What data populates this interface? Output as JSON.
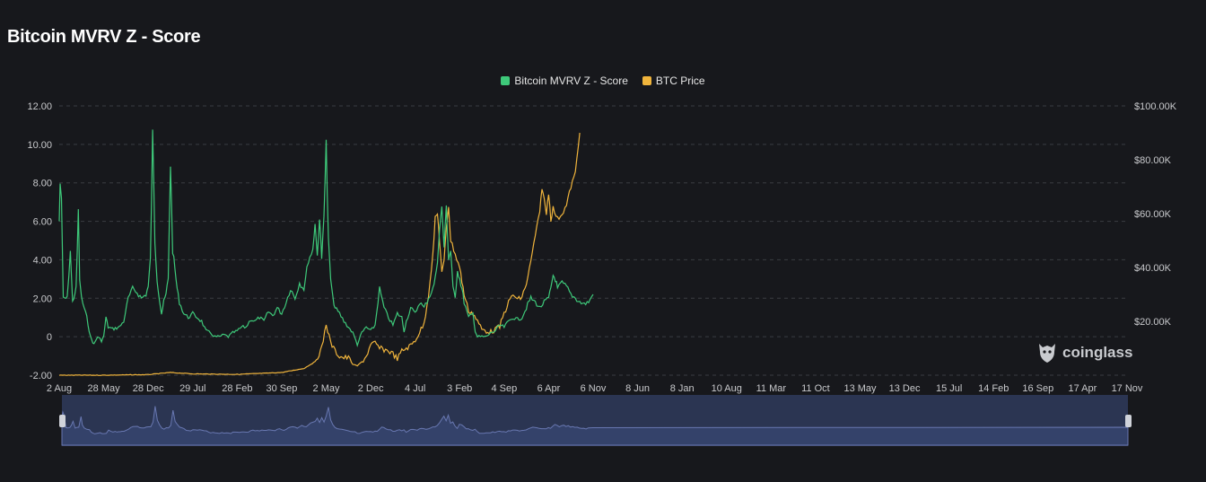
{
  "page": {
    "title": "Bitcoin MVRV Z - Score",
    "watermark": "coinglass"
  },
  "colors": {
    "background": "#17181c",
    "zscore": "#3ec97a",
    "price": "#f0b43c",
    "grid": "#3a3c42",
    "navigator_fill": "#34426a",
    "navigator_line": "#6877b0"
  },
  "chart_data": {
    "type": "line",
    "title": "Bitcoin MVRV Z - Score",
    "legend": {
      "placement": "top-center"
    },
    "grid": {
      "horizontal": true,
      "style": "dashed",
      "vertical": false
    },
    "x_tick_labels": [
      "2 Aug",
      "28 May",
      "28 Dec",
      "29 Jul",
      "28 Feb",
      "30 Sep",
      "2 May",
      "2 Dec",
      "4 Jul",
      "3 Feb",
      "4 Sep",
      "6 Apr",
      "6 Nov",
      "8 Jun",
      "8 Jan",
      "10 Aug",
      "11 Mar",
      "11 Oct",
      "13 May",
      "13 Dec",
      "15 Jul",
      "14 Feb",
      "16 Sep",
      "17 Apr",
      "17 Nov"
    ],
    "y_left": {
      "ylim": [
        -2,
        12
      ],
      "tick_labels": [
        "-2.00",
        "0",
        "2.00",
        "4.00",
        "6.00",
        "8.00",
        "10.00",
        "12.00"
      ],
      "tick_values": [
        -2,
        0,
        2,
        4,
        6,
        8,
        10,
        12
      ]
    },
    "y_right": {
      "ylim": [
        0,
        100000
      ],
      "tick_labels": [
        "$20.00K",
        "$40.00K",
        "$60.00K",
        "$80.00K",
        "$100.00K"
      ],
      "tick_values": [
        20000,
        40000,
        60000,
        80000,
        100000
      ]
    },
    "series": [
      {
        "name": "Bitcoin MVRV Z - Score",
        "axis": "left",
        "points": [
          [
            0,
            6.0
          ],
          [
            0.02,
            8.0
          ],
          [
            0.05,
            7.0
          ],
          [
            0.09,
            2.0
          ],
          [
            0.18,
            2.0
          ],
          [
            0.25,
            4.5
          ],
          [
            0.3,
            1.8
          ],
          [
            0.38,
            2.5
          ],
          [
            0.43,
            6.5
          ],
          [
            0.46,
            3.0
          ],
          [
            0.5,
            2.0
          ],
          [
            0.56,
            1.5
          ],
          [
            0.62,
            1.0
          ],
          [
            0.7,
            0.0
          ],
          [
            0.78,
            -0.4
          ],
          [
            0.86,
            0.0
          ],
          [
            0.95,
            -0.2
          ],
          [
            1.0,
            0.0
          ],
          [
            1.05,
            1.0
          ],
          [
            1.1,
            0.5
          ],
          [
            1.2,
            0.4
          ],
          [
            1.35,
            0.5
          ],
          [
            1.45,
            0.8
          ],
          [
            1.55,
            2.0
          ],
          [
            1.65,
            2.5
          ],
          [
            1.75,
            2.3
          ],
          [
            1.85,
            2.0
          ],
          [
            1.95,
            2.2
          ],
          [
            2.0,
            2.6
          ],
          [
            2.05,
            4.0
          ],
          [
            2.1,
            10.5
          ],
          [
            2.15,
            5.0
          ],
          [
            2.2,
            3.0
          ],
          [
            2.25,
            2.0
          ],
          [
            2.3,
            1.2
          ],
          [
            2.35,
            1.8
          ],
          [
            2.4,
            2.2
          ],
          [
            2.45,
            3.0
          ],
          [
            2.5,
            9.0
          ],
          [
            2.55,
            4.5
          ],
          [
            2.6,
            3.5
          ],
          [
            2.65,
            2.5
          ],
          [
            2.7,
            1.8
          ],
          [
            2.8,
            1.2
          ],
          [
            2.9,
            1.0
          ],
          [
            3.0,
            1.2
          ],
          [
            3.1,
            1.0
          ],
          [
            3.2,
            0.8
          ],
          [
            3.3,
            0.3
          ],
          [
            3.4,
            0.2
          ],
          [
            3.5,
            0.0
          ],
          [
            3.6,
            0.0
          ],
          [
            3.7,
            0.1
          ],
          [
            3.8,
            0.0
          ],
          [
            3.9,
            0.2
          ],
          [
            4.0,
            0.3
          ],
          [
            4.1,
            0.5
          ],
          [
            4.2,
            0.5
          ],
          [
            4.3,
            0.9
          ],
          [
            4.4,
            0.8
          ],
          [
            4.5,
            1.0
          ],
          [
            4.6,
            0.8
          ],
          [
            4.7,
            1.3
          ],
          [
            4.8,
            1.1
          ],
          [
            4.9,
            1.5
          ],
          [
            5.0,
            1.2
          ],
          [
            5.1,
            1.8
          ],
          [
            5.2,
            2.5
          ],
          [
            5.3,
            2.0
          ],
          [
            5.4,
            2.8
          ],
          [
            5.5,
            2.5
          ],
          [
            5.6,
            4.0
          ],
          [
            5.7,
            4.5
          ],
          [
            5.75,
            6.0
          ],
          [
            5.8,
            4.2
          ],
          [
            5.85,
            6.2
          ],
          [
            5.9,
            4.0
          ],
          [
            5.95,
            6.5
          ],
          [
            6.0,
            10.0
          ],
          [
            6.05,
            5.0
          ],
          [
            6.1,
            3.0
          ],
          [
            6.15,
            2.0
          ],
          [
            6.2,
            1.5
          ],
          [
            6.3,
            1.2
          ],
          [
            6.4,
            0.8
          ],
          [
            6.5,
            0.5
          ],
          [
            6.6,
            0.2
          ],
          [
            6.7,
            -0.4
          ],
          [
            6.8,
            0.2
          ],
          [
            6.9,
            0.5
          ],
          [
            7.0,
            0.3
          ],
          [
            7.1,
            0.6
          ],
          [
            7.2,
            2.5
          ],
          [
            7.3,
            1.5
          ],
          [
            7.4,
            1.0
          ],
          [
            7.5,
            0.6
          ],
          [
            7.6,
            1.2
          ],
          [
            7.7,
            1.0
          ],
          [
            7.75,
            0.3
          ],
          [
            7.8,
            0.8
          ],
          [
            7.9,
            1.5
          ],
          [
            8.0,
            1.2
          ],
          [
            8.1,
            1.8
          ],
          [
            8.2,
            1.5
          ],
          [
            8.3,
            2.0
          ],
          [
            8.4,
            2.5
          ],
          [
            8.45,
            3.0
          ],
          [
            8.5,
            4.0
          ],
          [
            8.55,
            5.5
          ],
          [
            8.6,
            6.8
          ],
          [
            8.65,
            4.5
          ],
          [
            8.7,
            7.0
          ],
          [
            8.75,
            4.0
          ],
          [
            8.8,
            4.5
          ],
          [
            8.85,
            2.5
          ],
          [
            8.9,
            2.0
          ],
          [
            8.95,
            3.5
          ],
          [
            9.0,
            3.0
          ],
          [
            9.05,
            2.5
          ],
          [
            9.1,
            1.8
          ],
          [
            9.2,
            1.0
          ],
          [
            9.3,
            1.2
          ],
          [
            9.35,
            0.3
          ],
          [
            9.4,
            0.0
          ],
          [
            9.5,
            0.0
          ],
          [
            9.6,
            0.0
          ],
          [
            9.7,
            0.2
          ],
          [
            9.8,
            0.3
          ],
          [
            9.9,
            0.6
          ],
          [
            10.0,
            0.5
          ],
          [
            10.1,
            0.8
          ],
          [
            10.2,
            1.0
          ],
          [
            10.3,
            0.9
          ],
          [
            10.4,
            1.0
          ],
          [
            10.5,
            1.5
          ],
          [
            10.55,
            1.8
          ],
          [
            10.6,
            2.0
          ],
          [
            10.7,
            1.8
          ],
          [
            10.8,
            1.5
          ],
          [
            10.9,
            1.8
          ],
          [
            11.0,
            2.0
          ],
          [
            11.05,
            2.5
          ],
          [
            11.1,
            3.2
          ],
          [
            11.15,
            3.0
          ],
          [
            11.2,
            2.5
          ],
          [
            11.3,
            2.8
          ],
          [
            11.4,
            2.6
          ],
          [
            11.5,
            2.2
          ],
          [
            11.6,
            2.0
          ],
          [
            11.7,
            1.8
          ],
          [
            11.8,
            1.7
          ],
          [
            11.9,
            1.8
          ],
          [
            12.0,
            2.2
          ]
        ]
      },
      {
        "name": "BTC Price",
        "axis": "right",
        "points": [
          [
            0,
            0
          ],
          [
            1.0,
            0
          ],
          [
            2.0,
            200
          ],
          [
            2.5,
            1000
          ],
          [
            3.0,
            500
          ],
          [
            4.0,
            300
          ],
          [
            5.0,
            1000
          ],
          [
            5.5,
            2500
          ],
          [
            5.75,
            5000
          ],
          [
            5.9,
            10000
          ],
          [
            6.0,
            19000
          ],
          [
            6.1,
            12000
          ],
          [
            6.2,
            9000
          ],
          [
            6.3,
            7000
          ],
          [
            6.4,
            6500
          ],
          [
            6.5,
            6500
          ],
          [
            6.6,
            4000
          ],
          [
            6.7,
            3500
          ],
          [
            6.8,
            5000
          ],
          [
            6.9,
            7000
          ],
          [
            7.0,
            11000
          ],
          [
            7.1,
            12000
          ],
          [
            7.2,
            10000
          ],
          [
            7.3,
            9500
          ],
          [
            7.4,
            9000
          ],
          [
            7.5,
            8000
          ],
          [
            7.6,
            6000
          ],
          [
            7.7,
            9000
          ],
          [
            7.8,
            10000
          ],
          [
            7.9,
            11000
          ],
          [
            8.0,
            13000
          ],
          [
            8.1,
            16000
          ],
          [
            8.2,
            19000
          ],
          [
            8.3,
            30000
          ],
          [
            8.4,
            45000
          ],
          [
            8.45,
            58000
          ],
          [
            8.5,
            60000
          ],
          [
            8.55,
            50000
          ],
          [
            8.6,
            38000
          ],
          [
            8.65,
            42000
          ],
          [
            8.7,
            55000
          ],
          [
            8.75,
            63000
          ],
          [
            8.8,
            50000
          ],
          [
            8.9,
            45000
          ],
          [
            9.0,
            40000
          ],
          [
            9.05,
            35000
          ],
          [
            9.1,
            30000
          ],
          [
            9.2,
            24000
          ],
          [
            9.3,
            23000
          ],
          [
            9.4,
            20000
          ],
          [
            9.5,
            17000
          ],
          [
            9.6,
            16500
          ],
          [
            9.7,
            16000
          ],
          [
            9.8,
            17000
          ],
          [
            9.9,
            18000
          ],
          [
            10.0,
            23000
          ],
          [
            10.1,
            27000
          ],
          [
            10.2,
            30000
          ],
          [
            10.3,
            28000
          ],
          [
            10.4,
            29000
          ],
          [
            10.5,
            34000
          ],
          [
            10.6,
            42000
          ],
          [
            10.7,
            52000
          ],
          [
            10.8,
            60000
          ],
          [
            10.85,
            70000
          ],
          [
            10.9,
            65000
          ],
          [
            10.95,
            60000
          ],
          [
            11.0,
            68000
          ],
          [
            11.05,
            58000
          ],
          [
            11.1,
            62000
          ],
          [
            11.2,
            58000
          ],
          [
            11.3,
            60000
          ],
          [
            11.4,
            63000
          ],
          [
            11.5,
            70000
          ],
          [
            11.6,
            75000
          ],
          [
            11.7,
            90000
          ]
        ]
      }
    ]
  }
}
